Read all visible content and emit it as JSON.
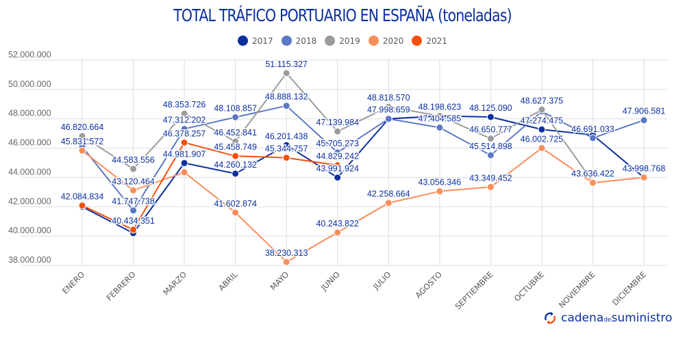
{
  "chart_data": {
    "type": "line",
    "title": "TOTAL TRÁFICO PORTUARIO EN ESPAÑA (toneladas)",
    "xlabel": "",
    "ylabel": "",
    "ylim": [
      38000000,
      52000000
    ],
    "yticks": [
      38000000,
      40000000,
      42000000,
      44000000,
      46000000,
      48000000,
      50000000,
      52000000
    ],
    "ytick_labels": [
      "38.000.000",
      "40.000.000",
      "42.000.000",
      "44.000.000",
      "46.000.000",
      "48.000.000",
      "50.000.000",
      "52.000.000"
    ],
    "grid": true,
    "legend_position": "top-center",
    "categories": [
      "ENERO",
      "FEBRERO",
      "MARZO",
      "ABRIL",
      "MAYO",
      "JUNIO",
      "JULIO",
      "AGOSTO",
      "SEPTIEMBRE",
      "OCTUBRE",
      "NOVIEMBRE",
      "DICIEMBRE"
    ],
    "series": [
      {
        "name": "2017",
        "color": "#0a2f9e",
        "values": [
          42000000,
          40200000,
          44981907,
          44260132,
          46201438,
          43991924,
          47998659,
          48198623,
          48125090,
          47274475,
          46900000,
          43998768
        ],
        "labels": [
          null,
          null,
          "44.981.907",
          "44.260.132",
          "46.201.438",
          "43.991.924",
          "47.998.659",
          null,
          "48.125.090",
          "47.274.475",
          null,
          null
        ]
      },
      {
        "name": "2018",
        "color": "#5b78c6",
        "values": [
          46100000,
          41747738,
          47312202,
          48108857,
          48888132,
          45705273,
          48000000,
          47404585,
          45514898,
          48500000,
          46691033,
          47906581
        ],
        "labels": [
          null,
          "41.747.738",
          "47.312.202",
          "48.108.857",
          "48.888.132",
          "45.705.273",
          null,
          "47.404.585",
          "45.514.898",
          null,
          "46.691.033",
          "47.906.581"
        ]
      },
      {
        "name": "2019",
        "color": "#9b9b9b",
        "values": [
          46820664,
          44583556,
          48353726,
          46452841,
          51115327,
          47139984,
          48818570,
          48198623,
          46650777,
          48627375,
          43700000,
          null
        ],
        "labels": [
          "46.820.664",
          "44.583.556",
          "48.353.726",
          "46.452.841",
          "51.115.327",
          "47.139.984",
          "48.818.570",
          "48.198.623",
          "46.650.777",
          "48.627.375",
          null,
          null
        ]
      },
      {
        "name": "2020",
        "color": "#f98d5c",
        "values": [
          45831572,
          43120464,
          44350000,
          41602874,
          38230313,
          40243822,
          42258664,
          43056346,
          43349452,
          46002725,
          43636422,
          43998768
        ],
        "labels": [
          "45.831.572",
          "43.120.464",
          null,
          "41.602.874",
          "38.230.313",
          "40.243.822",
          "42.258.664",
          "43.056.346",
          "43.349.452",
          "46.002.725",
          "43.636.422",
          "43.998.768"
        ]
      },
      {
        "name": "2021",
        "color": "#f5500e",
        "values": [
          42084834,
          40434351,
          46378257,
          45458749,
          45344757,
          44829242,
          null,
          null,
          null,
          null,
          null,
          null
        ],
        "labels": [
          "42.084.834",
          "40.434.351",
          "46.378.257",
          "45.458.749",
          "45.344.757",
          "44.829.242",
          null,
          null,
          null,
          null,
          null,
          null
        ]
      }
    ]
  },
  "logo": {
    "part1": "cadena",
    "part2": "de",
    "part3": "suministro"
  }
}
